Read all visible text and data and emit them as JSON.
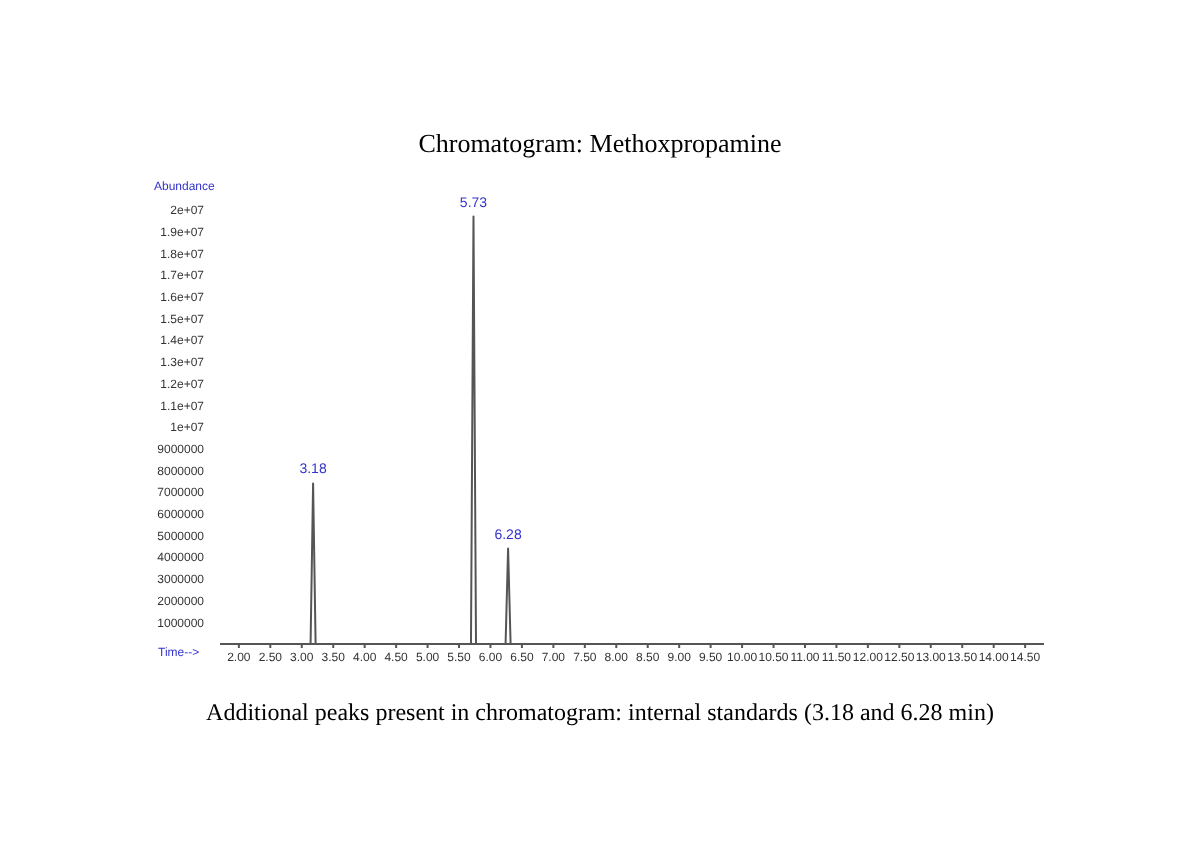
{
  "chart_data": {
    "type": "line",
    "title": "Chromatogram: Methoxpropamine",
    "xlabel": "Time-->",
    "ylabel": "Abundance",
    "x": [
      1.7,
      3.14,
      3.18,
      3.22,
      5.69,
      5.73,
      5.77,
      6.24,
      6.28,
      6.32,
      14.8
    ],
    "series": [
      {
        "color": "#555555",
        "values": [
          0,
          0,
          7400000,
          0,
          0,
          19700000,
          0,
          0,
          4400000,
          0,
          0
        ]
      }
    ],
    "xlim": [
      1.7,
      14.8
    ],
    "xticks": [
      {
        "value": 2,
        "label": "2.00"
      },
      {
        "value": 2.5,
        "label": "2.50"
      },
      {
        "value": 3,
        "label": "3.00"
      },
      {
        "value": 3.5,
        "label": "3.50"
      },
      {
        "value": 4,
        "label": "4.00"
      },
      {
        "value": 4.5,
        "label": "4.50"
      },
      {
        "value": 5,
        "label": "5.00"
      },
      {
        "value": 5.5,
        "label": "5.50"
      },
      {
        "value": 6,
        "label": "6.00"
      },
      {
        "value": 6.5,
        "label": "6.50"
      },
      {
        "value": 7,
        "label": "7.00"
      },
      {
        "value": 7.5,
        "label": "7.50"
      },
      {
        "value": 8,
        "label": "8.00"
      },
      {
        "value": 8.5,
        "label": "8.50"
      },
      {
        "value": 9,
        "label": "9.00"
      },
      {
        "value": 9.5,
        "label": "9.50"
      },
      {
        "value": 10,
        "label": "10.00"
      },
      {
        "value": 10.5,
        "label": "10.50"
      },
      {
        "value": 11,
        "label": "11.00"
      },
      {
        "value": 11.5,
        "label": "11.50"
      },
      {
        "value": 12,
        "label": "12.00"
      },
      {
        "value": 12.5,
        "label": "12.50"
      },
      {
        "value": 13,
        "label": "13.00"
      },
      {
        "value": 13.5,
        "label": "13.50"
      },
      {
        "value": 14,
        "label": "14.00"
      },
      {
        "value": 14.5,
        "label": "14.50"
      }
    ],
    "ylim": [
      0,
      20000000
    ],
    "yticks": [
      1000000,
      2000000,
      3000000,
      4000000,
      5000000,
      6000000,
      7000000,
      8000000,
      9000000,
      {
        "value": 10000000,
        "label": "1e+07"
      },
      {
        "value": 11000000,
        "label": "1.1e+07"
      },
      {
        "value": 12000000,
        "label": "1.2e+07"
      },
      {
        "value": 13000000,
        "label": "1.3e+07"
      },
      {
        "value": 14000000,
        "label": "1.4e+07"
      },
      {
        "value": 15000000,
        "label": "1.5e+07"
      },
      {
        "value": 16000000,
        "label": "1.6e+07"
      },
      {
        "value": 17000000,
        "label": "1.7e+07"
      },
      {
        "value": 18000000,
        "label": "1.8e+07"
      },
      {
        "value": 19000000,
        "label": "1.9e+07"
      },
      {
        "value": 20000000,
        "label": "2e+07"
      }
    ],
    "annotations": [
      {
        "text": "3.18",
        "x": 3.18,
        "y": 7400000
      },
      {
        "text": "5.73",
        "x": 5.73,
        "y": 19700000
      },
      {
        "text": "6.28",
        "x": 6.28,
        "y": 4400000
      },
      "Additional peaks present in chromatogram: internal standards (3.18 and 6.28 min)"
    ],
    "grid": false,
    "marker": "none",
    "line_style": "solid"
  }
}
